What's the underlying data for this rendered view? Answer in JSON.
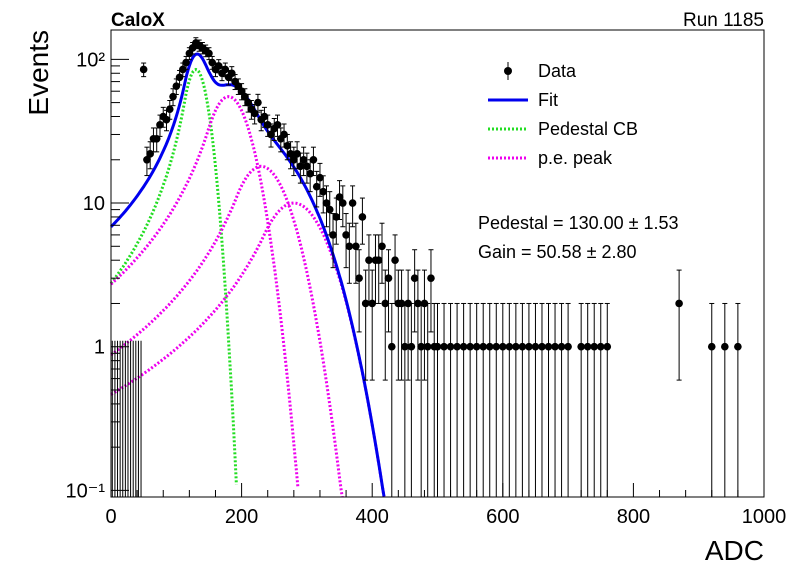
{
  "header": {
    "experiment": "CaloX",
    "run": "Run 1185"
  },
  "fit_results": {
    "pedestal": "Pedestal = 130.00 ± 1.53",
    "gain": "Gain = 50.58 ± 2.80"
  },
  "chart_data": {
    "type": "scatter",
    "xlabel": "ADC",
    "ylabel": "Events",
    "xlim": [
      0,
      1000
    ],
    "ylim": [
      0.09,
      160
    ],
    "yscale": "log",
    "grid": false,
    "legend_position": "top-right",
    "x_ticks": [
      {
        "v": 0,
        "label": "0"
      },
      {
        "v": 200,
        "label": "200"
      },
      {
        "v": 400,
        "label": "400"
      },
      {
        "v": 600,
        "label": "600"
      },
      {
        "v": 800,
        "label": "800"
      },
      {
        "v": 1000,
        "label": "1000"
      }
    ],
    "y_ticks": [
      {
        "v": 0.1,
        "label": "10⁻¹"
      },
      {
        "v": 1,
        "label": "1"
      },
      {
        "v": 10,
        "label": "10"
      },
      {
        "v": 100,
        "label": "10²"
      }
    ],
    "legend": [
      {
        "name": "Data",
        "style": "marker",
        "color": "#000000"
      },
      {
        "name": "Fit",
        "style": "solid",
        "color": "#0000ee"
      },
      {
        "name": "Pedestal CB",
        "style": "dotted",
        "color": "#22dd22"
      },
      {
        "name": "p.e. peak",
        "style": "dotted",
        "color": "#ee00ee"
      }
    ],
    "data_points": [
      {
        "x": 50,
        "y": 85
      },
      {
        "x": 55,
        "y": 20
      },
      {
        "x": 60,
        "y": 22
      },
      {
        "x": 65,
        "y": 28
      },
      {
        "x": 70,
        "y": 28
      },
      {
        "x": 75,
        "y": 35
      },
      {
        "x": 80,
        "y": 40
      },
      {
        "x": 85,
        "y": 38
      },
      {
        "x": 90,
        "y": 45
      },
      {
        "x": 95,
        "y": 55
      },
      {
        "x": 100,
        "y": 65
      },
      {
        "x": 105,
        "y": 75
      },
      {
        "x": 110,
        "y": 85
      },
      {
        "x": 115,
        "y": 95
      },
      {
        "x": 120,
        "y": 110
      },
      {
        "x": 125,
        "y": 120
      },
      {
        "x": 130,
        "y": 130
      },
      {
        "x": 135,
        "y": 125
      },
      {
        "x": 140,
        "y": 120
      },
      {
        "x": 145,
        "y": 115
      },
      {
        "x": 150,
        "y": 110
      },
      {
        "x": 155,
        "y": 95
      },
      {
        "x": 160,
        "y": 85
      },
      {
        "x": 165,
        "y": 90
      },
      {
        "x": 170,
        "y": 80
      },
      {
        "x": 175,
        "y": 85
      },
      {
        "x": 180,
        "y": 75
      },
      {
        "x": 185,
        "y": 80
      },
      {
        "x": 190,
        "y": 70
      },
      {
        "x": 195,
        "y": 65
      },
      {
        "x": 200,
        "y": 60
      },
      {
        "x": 205,
        "y": 55
      },
      {
        "x": 210,
        "y": 50
      },
      {
        "x": 215,
        "y": 45
      },
      {
        "x": 220,
        "y": 42
      },
      {
        "x": 225,
        "y": 50
      },
      {
        "x": 230,
        "y": 38
      },
      {
        "x": 235,
        "y": 40
      },
      {
        "x": 240,
        "y": 35
      },
      {
        "x": 245,
        "y": 30
      },
      {
        "x": 250,
        "y": 33
      },
      {
        "x": 255,
        "y": 35
      },
      {
        "x": 260,
        "y": 28
      },
      {
        "x": 265,
        "y": 30
      },
      {
        "x": 270,
        "y": 25
      },
      {
        "x": 275,
        "y": 22
      },
      {
        "x": 280,
        "y": 20
      },
      {
        "x": 285,
        "y": 22
      },
      {
        "x": 290,
        "y": 18
      },
      {
        "x": 295,
        "y": 20
      },
      {
        "x": 300,
        "y": 18
      },
      {
        "x": 305,
        "y": 16
      },
      {
        "x": 310,
        "y": 20
      },
      {
        "x": 315,
        "y": 13
      },
      {
        "x": 320,
        "y": 15
      },
      {
        "x": 325,
        "y": 12
      },
      {
        "x": 330,
        "y": 10
      },
      {
        "x": 335,
        "y": 9
      },
      {
        "x": 340,
        "y": 6
      },
      {
        "x": 345,
        "y": 8
      },
      {
        "x": 350,
        "y": 11
      },
      {
        "x": 355,
        "y": 10
      },
      {
        "x": 360,
        "y": 6
      },
      {
        "x": 365,
        "y": 5
      },
      {
        "x": 370,
        "y": 10
      },
      {
        "x": 375,
        "y": 5
      },
      {
        "x": 380,
        "y": 3
      },
      {
        "x": 385,
        "y": 8
      },
      {
        "x": 390,
        "y": 2
      },
      {
        "x": 395,
        "y": 4
      },
      {
        "x": 400,
        "y": 2
      },
      {
        "x": 405,
        "y": 4
      },
      {
        "x": 410,
        "y": 4
      },
      {
        "x": 415,
        "y": 5
      },
      {
        "x": 420,
        "y": 2
      },
      {
        "x": 425,
        "y": 3
      },
      {
        "x": 430,
        "y": 1
      },
      {
        "x": 435,
        "y": 4
      },
      {
        "x": 440,
        "y": 2
      },
      {
        "x": 445,
        "y": 2
      },
      {
        "x": 450,
        "y": 1
      },
      {
        "x": 455,
        "y": 2
      },
      {
        "x": 460,
        "y": 1
      },
      {
        "x": 465,
        "y": 3
      },
      {
        "x": 470,
        "y": 2
      },
      {
        "x": 475,
        "y": 1
      },
      {
        "x": 480,
        "y": 2
      },
      {
        "x": 485,
        "y": 1
      },
      {
        "x": 490,
        "y": 3
      },
      {
        "x": 495,
        "y": 1
      },
      {
        "x": 500,
        "y": 1
      },
      {
        "x": 510,
        "y": 1
      },
      {
        "x": 520,
        "y": 1
      },
      {
        "x": 530,
        "y": 1
      },
      {
        "x": 540,
        "y": 1
      },
      {
        "x": 550,
        "y": 1
      },
      {
        "x": 560,
        "y": 1
      },
      {
        "x": 570,
        "y": 1
      },
      {
        "x": 580,
        "y": 1
      },
      {
        "x": 590,
        "y": 1
      },
      {
        "x": 600,
        "y": 1
      },
      {
        "x": 610,
        "y": 1
      },
      {
        "x": 620,
        "y": 1
      },
      {
        "x": 630,
        "y": 1
      },
      {
        "x": 640,
        "y": 1
      },
      {
        "x": 650,
        "y": 1
      },
      {
        "x": 660,
        "y": 1
      },
      {
        "x": 670,
        "y": 1
      },
      {
        "x": 680,
        "y": 1
      },
      {
        "x": 690,
        "y": 1
      },
      {
        "x": 700,
        "y": 1
      },
      {
        "x": 720,
        "y": 1
      },
      {
        "x": 730,
        "y": 1
      },
      {
        "x": 740,
        "y": 1
      },
      {
        "x": 750,
        "y": 1
      },
      {
        "x": 760,
        "y": 1
      },
      {
        "x": 870,
        "y": 2
      },
      {
        "x": 920,
        "y": 1
      },
      {
        "x": 940,
        "y": 1
      },
      {
        "x": 960,
        "y": 1
      }
    ]
  }
}
